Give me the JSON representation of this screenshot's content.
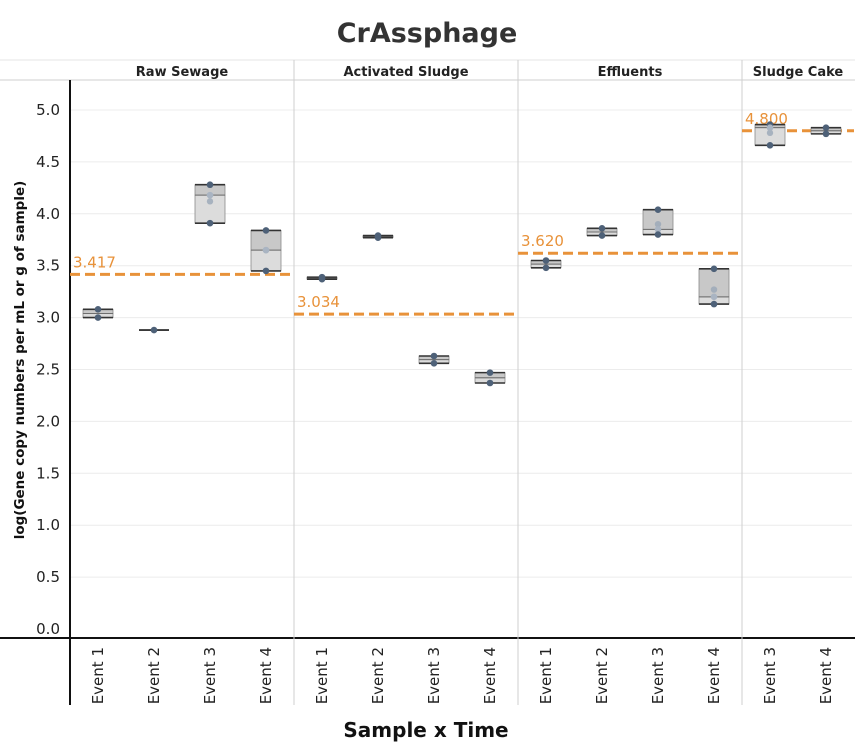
{
  "chart_data": {
    "type": "boxplot",
    "title": "CrAssphage",
    "xlabel": "Sample x Time",
    "ylabel": "log(Gene copy numbers per mL or g of sample)",
    "ylim": [
      0,
      5.25
    ],
    "yticks": [
      "0.0",
      "0.5",
      "1.0",
      "1.5",
      "2.0",
      "2.5",
      "3.0",
      "3.5",
      "4.0",
      "4.5",
      "5.0"
    ],
    "grid": true,
    "colors": {
      "point": "#4e6178",
      "box_upper": "#c8c8c8",
      "box_lower": "#dcdcdc",
      "mean_line": "#e8923a",
      "text": "#222222"
    },
    "panels": [
      {
        "name": "Raw Sewage",
        "mean": 3.417,
        "mean_label": "3.417",
        "groups": [
          {
            "category": "Event 1",
            "points": [
              3.08,
              3.0
            ],
            "median": 3.04,
            "mean": 3.04
          },
          {
            "category": "Event 2",
            "points": [
              2.88
            ],
            "median": 2.88,
            "mean": 2.88
          },
          {
            "category": "Event 3",
            "points": [
              4.28,
              4.18,
              3.91
            ],
            "median": 4.18,
            "mean": 4.12
          },
          {
            "category": "Event 4",
            "points": [
              3.84,
              3.65,
              3.45
            ],
            "median": 3.65,
            "mean": 3.65
          }
        ]
      },
      {
        "name": "Activated Sludge",
        "mean": 3.034,
        "mean_label": "3.034",
        "groups": [
          {
            "category": "Event 1",
            "points": [
              3.39,
              3.37
            ],
            "median": 3.38,
            "mean": 3.38
          },
          {
            "category": "Event 2",
            "points": [
              3.79,
              3.77
            ],
            "median": 3.78,
            "mean": 3.78
          },
          {
            "category": "Event 3",
            "points": [
              2.63,
              2.56
            ],
            "median": 2.595,
            "mean": 2.595
          },
          {
            "category": "Event 4",
            "points": [
              2.47,
              2.37
            ],
            "median": 2.42,
            "mean": 2.42
          }
        ]
      },
      {
        "name": "Effluents",
        "mean": 3.62,
        "mean_label": "3.620",
        "groups": [
          {
            "category": "Event 1",
            "points": [
              3.55,
              3.48
            ],
            "median": 3.515,
            "mean": 3.515
          },
          {
            "category": "Event 2",
            "points": [
              3.86,
              3.79
            ],
            "median": 3.825,
            "mean": 3.825
          },
          {
            "category": "Event 3",
            "points": [
              4.04,
              3.85,
              3.8
            ],
            "median": 3.85,
            "mean": 3.9
          },
          {
            "category": "Event 4",
            "points": [
              3.47,
              3.2,
              3.13
            ],
            "median": 3.2,
            "mean": 3.27
          }
        ]
      },
      {
        "name": "Sludge Cake",
        "mean": 4.8,
        "mean_label": "4.800",
        "groups": [
          {
            "category": "Event 3",
            "points": [
              4.86,
              4.83,
              4.66
            ],
            "median": 4.83,
            "mean": 4.78
          },
          {
            "category": "Event 4",
            "points": [
              4.83,
              4.77
            ],
            "median": 4.8,
            "mean": 4.8
          }
        ]
      }
    ]
  }
}
